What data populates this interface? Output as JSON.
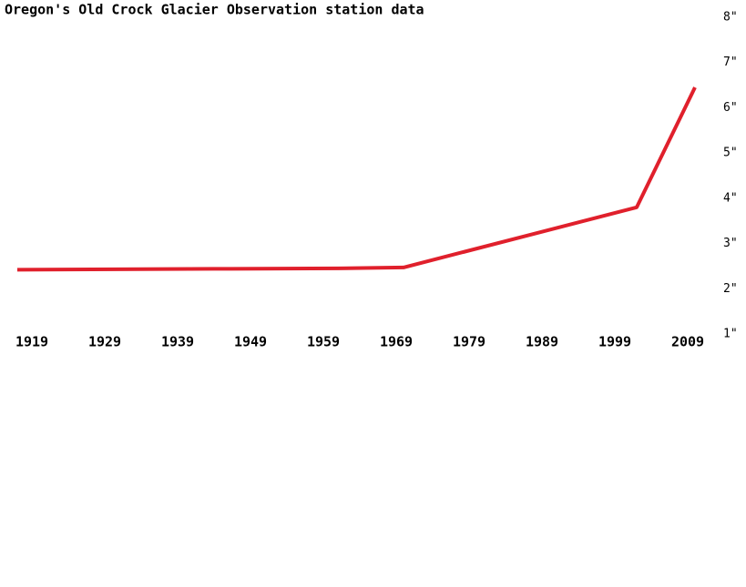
{
  "chart_data": {
    "type": "line",
    "title": "Oregon's Old Crock Glacier Observation station data",
    "x": [
      1917,
      1944,
      1961,
      1970,
      2002,
      2010
    ],
    "values": [
      2.4,
      2.42,
      2.43,
      2.45,
      3.78,
      6.43
    ],
    "color": "#e0202c",
    "xlim": [
      1917,
      2010
    ],
    "xticks": [
      1919,
      1929,
      1939,
      1949,
      1959,
      1969,
      1979,
      1989,
      1999,
      2009
    ],
    "ylim": [
      1,
      8
    ],
    "yticks": [
      {
        "value": 1,
        "label": "1\""
      },
      {
        "value": 2,
        "label": "2\""
      },
      {
        "value": 3,
        "label": "3\""
      },
      {
        "value": 4,
        "label": "4\""
      },
      {
        "value": 5,
        "label": "5\""
      },
      {
        "value": 6,
        "label": "6\""
      },
      {
        "value": 7,
        "label": "7\""
      },
      {
        "value": 8,
        "label": "8\""
      }
    ]
  }
}
